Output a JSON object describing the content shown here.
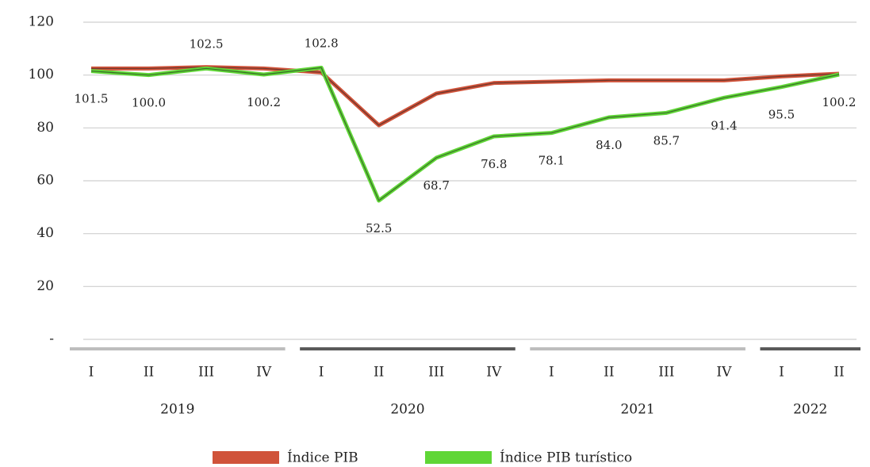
{
  "chart_data": {
    "type": "line",
    "categories": [
      "I",
      "II",
      "III",
      "IV",
      "I",
      "II",
      "III",
      "IV",
      "I",
      "II",
      "III",
      "IV",
      "I",
      "II"
    ],
    "year_labels": [
      "2019",
      "2020",
      "2021",
      "2022"
    ],
    "series": [
      {
        "name": "Índice PIB",
        "color": "#d0533a",
        "values": [
          102.5,
          102.5,
          103,
          102.5,
          101,
          81,
          93,
          97,
          97.5,
          98,
          98,
          98,
          99.5,
          100.5
        ]
      },
      {
        "name": "Índice PIB turístico",
        "color": "#5fd636",
        "values": [
          101.5,
          100.0,
          102.5,
          100.2,
          102.8,
          52.5,
          68.7,
          76.8,
          78.1,
          84.0,
          85.7,
          91.4,
          95.5,
          100.2
        ],
        "value_labels": [
          "101.5",
          "100.0",
          "102.5",
          "100.2",
          "102.8",
          "52.5",
          "68.7",
          "76.8",
          "78.1",
          "84.0",
          "85.7",
          "91.4",
          "95.5",
          "100.2"
        ]
      }
    ],
    "ylim": [
      0,
      120
    ],
    "yticks": [
      {
        "value": 0,
        "label": "-"
      },
      20,
      40,
      60,
      80,
      100,
      120
    ],
    "grid": true
  }
}
